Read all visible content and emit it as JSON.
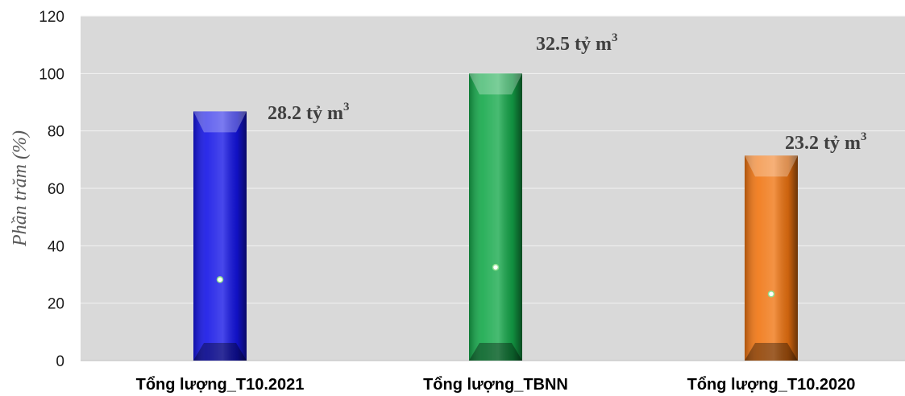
{
  "chart_data": {
    "type": "bar",
    "ylabel": "Phần trăm (%)",
    "ylim": [
      0,
      120
    ],
    "yticks": [
      0,
      20,
      40,
      60,
      80,
      100,
      120
    ],
    "grid": true,
    "categories": [
      "Tổng lượng_T10.2021",
      "Tổng lượng_TBNN",
      "Tổng lượng_T10.2020"
    ],
    "values": [
      86.8,
      100,
      71.4
    ],
    "colors": [
      "#1414e6",
      "#14a84a",
      "#f07410"
    ],
    "markers": [
      28.2,
      32.5,
      23.2
    ],
    "data_labels": [
      {
        "main": "28.2 tỷ m",
        "sup": "3"
      },
      {
        "main": "32.5 tỷ m",
        "sup": "3"
      },
      {
        "main": "23.2 tỷ m",
        "sup": "3"
      }
    ]
  }
}
